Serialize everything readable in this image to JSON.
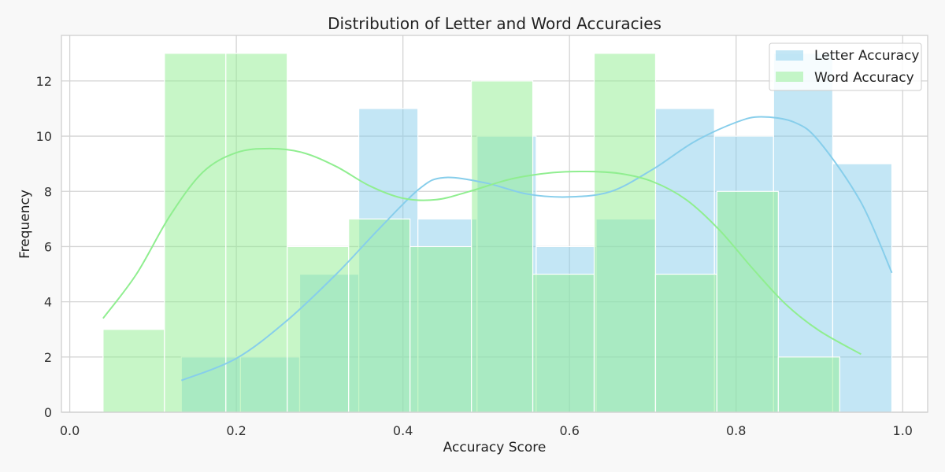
{
  "chart_data": {
    "type": "histogram",
    "title": "Distribution of Letter and Word Accuracies",
    "xlabel": "Accuracy Score",
    "ylabel": "Frequency",
    "xlim": [
      -0.01,
      1.03
    ],
    "ylim": [
      0,
      13.65
    ],
    "xticks": [
      0.0,
      0.2,
      0.4,
      0.6,
      0.8,
      1.0
    ],
    "xtick_labels": [
      "0.0",
      "0.2",
      "0.4",
      "0.6",
      "0.8",
      "1.0"
    ],
    "yticks": [
      0,
      2,
      4,
      6,
      8,
      10,
      12
    ],
    "ytick_labels": [
      "0",
      "2",
      "4",
      "6",
      "8",
      "10",
      "12"
    ],
    "grid": true,
    "legend_position": "top-right",
    "series": [
      {
        "name": "Letter Accuracy",
        "color": "#87ceeb",
        "bin_edges": [
          0.134,
          0.205,
          0.276,
          0.347,
          0.418,
          0.489,
          0.56,
          0.632,
          0.703,
          0.774,
          0.845,
          0.916,
          0.987
        ],
        "counts": [
          2,
          2,
          5,
          11,
          7,
          10,
          6,
          7,
          11,
          10,
          13,
          9
        ],
        "kde": {
          "x": [
            0.134,
            0.2,
            0.26,
            0.32,
            0.37,
            0.42,
            0.45,
            0.5,
            0.55,
            0.6,
            0.65,
            0.7,
            0.75,
            0.8,
            0.83,
            0.87,
            0.9,
            0.95,
            0.987
          ],
          "y": [
            1.15,
            1.95,
            3.3,
            5.0,
            6.6,
            8.1,
            8.5,
            8.3,
            7.9,
            7.8,
            8.0,
            8.8,
            9.8,
            10.5,
            10.7,
            10.5,
            9.8,
            7.6,
            5.05
          ]
        }
      },
      {
        "name": "Word Accuracy",
        "color": "#90ee90",
        "bin_edges": [
          0.04,
          0.1137,
          0.1874,
          0.2611,
          0.3348,
          0.4085,
          0.4822,
          0.5559,
          0.6296,
          0.7033,
          0.777,
          0.8507,
          0.9244
        ],
        "counts": [
          3,
          13,
          13,
          6,
          7,
          6,
          12,
          5,
          13,
          5,
          8,
          2
        ],
        "kde": {
          "x": [
            0.04,
            0.08,
            0.12,
            0.16,
            0.2,
            0.24,
            0.28,
            0.32,
            0.36,
            0.4,
            0.44,
            0.48,
            0.53,
            0.58,
            0.62,
            0.66,
            0.7,
            0.74,
            0.78,
            0.82,
            0.86,
            0.9,
            0.95
          ],
          "y": [
            3.4,
            5.0,
            7.1,
            8.7,
            9.4,
            9.55,
            9.4,
            8.9,
            8.2,
            7.75,
            7.7,
            8.0,
            8.45,
            8.68,
            8.72,
            8.65,
            8.35,
            7.7,
            6.6,
            5.2,
            3.9,
            2.95,
            2.1
          ]
        }
      }
    ]
  }
}
